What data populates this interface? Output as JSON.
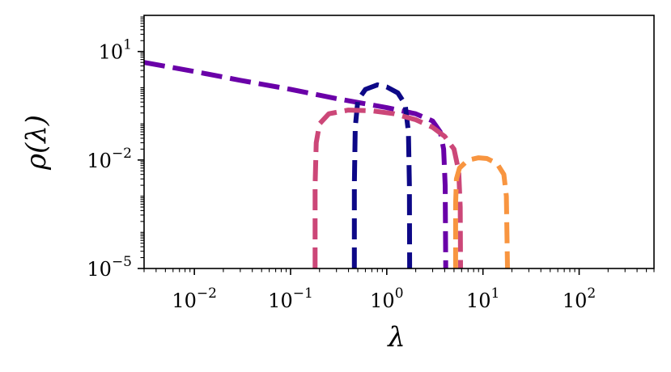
{
  "chart_data": {
    "type": "line",
    "xlabel": "λ",
    "ylabel": "ρ(λ)",
    "xscale": "log",
    "yscale": "log",
    "xlim": [
      0.003,
      600
    ],
    "ylim": [
      1e-05,
      100
    ],
    "grid": false,
    "legend": "none",
    "linestyle": "dashed",
    "x_ticks": [
      {
        "value": 0.01,
        "label": "10",
        "exp": "−2"
      },
      {
        "value": 0.1,
        "label": "10",
        "exp": "−1"
      },
      {
        "value": 1,
        "label": "10",
        "exp": "0"
      },
      {
        "value": 10,
        "label": "10",
        "exp": "1"
      },
      {
        "value": 100,
        "label": "10",
        "exp": "2"
      }
    ],
    "y_ticks": [
      {
        "value": 1e-05,
        "label": "10",
        "exp": "−5"
      },
      {
        "value": 0.01,
        "label": "10",
        "exp": "−2"
      },
      {
        "value": 10,
        "label": "10",
        "exp": "1"
      }
    ],
    "series": [
      {
        "color": "#6a00a8",
        "points": [
          [
            0.003,
            5.0
          ],
          [
            0.01,
            2.8
          ],
          [
            0.03,
            1.6
          ],
          [
            0.1,
            0.9
          ],
          [
            0.3,
            0.5
          ],
          [
            1,
            0.28
          ],
          [
            2,
            0.19
          ],
          [
            3,
            0.12
          ],
          [
            3.6,
            0.06
          ],
          [
            3.9,
            0.02
          ],
          [
            4.05,
            0.002
          ],
          [
            4.1,
            1e-05
          ]
        ]
      },
      {
        "color": "#0d0887",
        "points": [
          [
            0.46,
            1e-05
          ],
          [
            0.46,
            0.002
          ],
          [
            0.47,
            0.08
          ],
          [
            0.5,
            0.45
          ],
          [
            0.6,
            0.9
          ],
          [
            0.8,
            1.2
          ],
          [
            1.0,
            1.05
          ],
          [
            1.3,
            0.72
          ],
          [
            1.55,
            0.35
          ],
          [
            1.68,
            0.06
          ],
          [
            1.72,
            0.002
          ],
          [
            1.73,
            1e-05
          ]
        ]
      },
      {
        "color": "#cc4778",
        "points": [
          [
            0.18,
            1e-05
          ],
          [
            0.18,
            0.002
          ],
          [
            0.185,
            0.03
          ],
          [
            0.2,
            0.1
          ],
          [
            0.25,
            0.19
          ],
          [
            0.4,
            0.24
          ],
          [
            0.7,
            0.23
          ],
          [
            1.2,
            0.19
          ],
          [
            2,
            0.13
          ],
          [
            3,
            0.08
          ],
          [
            4,
            0.045
          ],
          [
            5,
            0.02
          ],
          [
            5.6,
            0.005
          ],
          [
            5.8,
            0.0005
          ],
          [
            5.85,
            1e-05
          ]
        ]
      },
      {
        "color": "#f89540",
        "points": [
          [
            5.2,
            1e-05
          ],
          [
            5.2,
            0.0006
          ],
          [
            5.3,
            0.003
          ],
          [
            5.7,
            0.006
          ],
          [
            7,
            0.01
          ],
          [
            9,
            0.0115
          ],
          [
            11,
            0.011
          ],
          [
            14,
            0.008
          ],
          [
            16.5,
            0.004
          ],
          [
            17.5,
            0.001
          ],
          [
            18,
            1e-05
          ]
        ]
      }
    ]
  }
}
